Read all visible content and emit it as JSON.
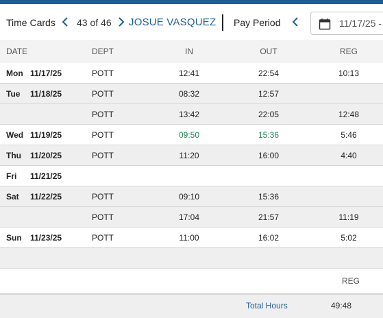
{
  "header": {
    "title": "Time Cards",
    "counter": "43 of 46",
    "employee": "JOSUE VASQUEZ",
    "pay_period_label": "Pay Period",
    "date_value": "11/17/25 -"
  },
  "columns": {
    "date": "DATE",
    "dept": "DEPT",
    "in": "IN",
    "out": "OUT",
    "reg": "REG"
  },
  "rows": [
    {
      "day": "Mon",
      "date": "11/17/25",
      "dept": "POTT",
      "in": "12:41",
      "out": "22:54",
      "reg": "10:13"
    },
    {
      "day": "Tue",
      "date": "11/18/25",
      "dept": "POTT",
      "in": "08:32",
      "out": "12:57",
      "reg": ""
    },
    {
      "day": "",
      "date": "",
      "dept": "POTT",
      "in": "13:42",
      "out": "22:05",
      "reg": "12:48"
    },
    {
      "day": "Wed",
      "date": "11/19/25",
      "dept": "POTT",
      "in": "09:50",
      "out": "15:36",
      "reg": "5:46"
    },
    {
      "day": "Thu",
      "date": "11/20/25",
      "dept": "POTT",
      "in": "11:20",
      "out": "16:00",
      "reg": "4:40"
    },
    {
      "day": "Fri",
      "date": "11/21/25",
      "dept": "",
      "in": "",
      "out": "",
      "reg": ""
    },
    {
      "day": "Sat",
      "date": "11/22/25",
      "dept": "POTT",
      "in": "09:10",
      "out": "15:36",
      "reg": ""
    },
    {
      "day": "",
      "date": "",
      "dept": "POTT",
      "in": "17:04",
      "out": "21:57",
      "reg": "11:19"
    },
    {
      "day": "Sun",
      "date": "11/23/25",
      "dept": "POTT",
      "in": "11:00",
      "out": "16:02",
      "reg": "5:02"
    }
  ],
  "summary": {
    "reg_header": "REG",
    "total_label": "Total Hours",
    "total_value": "49:48"
  },
  "colors": {
    "accent": "#1b5e9c",
    "highlight_time": "#1f8a5b"
  }
}
